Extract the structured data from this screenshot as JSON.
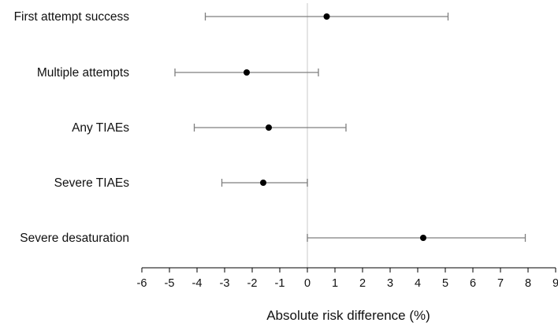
{
  "chart_data": {
    "type": "forest",
    "title": "",
    "xlabel": "Absolute risk difference (%)",
    "ylabel": "",
    "xlim": [
      -6,
      9
    ],
    "x_ticks": [
      -6,
      -5,
      -4,
      -3,
      -2,
      -1,
      0,
      1,
      2,
      3,
      4,
      5,
      6,
      7,
      8,
      9
    ],
    "reference_line": 0,
    "grid": false,
    "rows": [
      {
        "label": "First attempt success",
        "estimate": 0.7,
        "lower": -3.7,
        "upper": 5.1
      },
      {
        "label": "Multiple attempts",
        "estimate": -2.2,
        "lower": -4.8,
        "upper": 0.4
      },
      {
        "label": "Any TIAEs",
        "estimate": -1.4,
        "lower": -4.1,
        "upper": 1.4
      },
      {
        "label": "Severe TIAEs",
        "estimate": -1.6,
        "lower": -3.1,
        "upper": 0.0
      },
      {
        "label": "Severe desaturation",
        "estimate": 4.2,
        "lower": 0.0,
        "upper": 7.9
      }
    ],
    "colors": {
      "point": "#000000",
      "ci_line": "#7f7f7f",
      "axis": "#000000",
      "reference_line": "#d3d3d3"
    }
  }
}
